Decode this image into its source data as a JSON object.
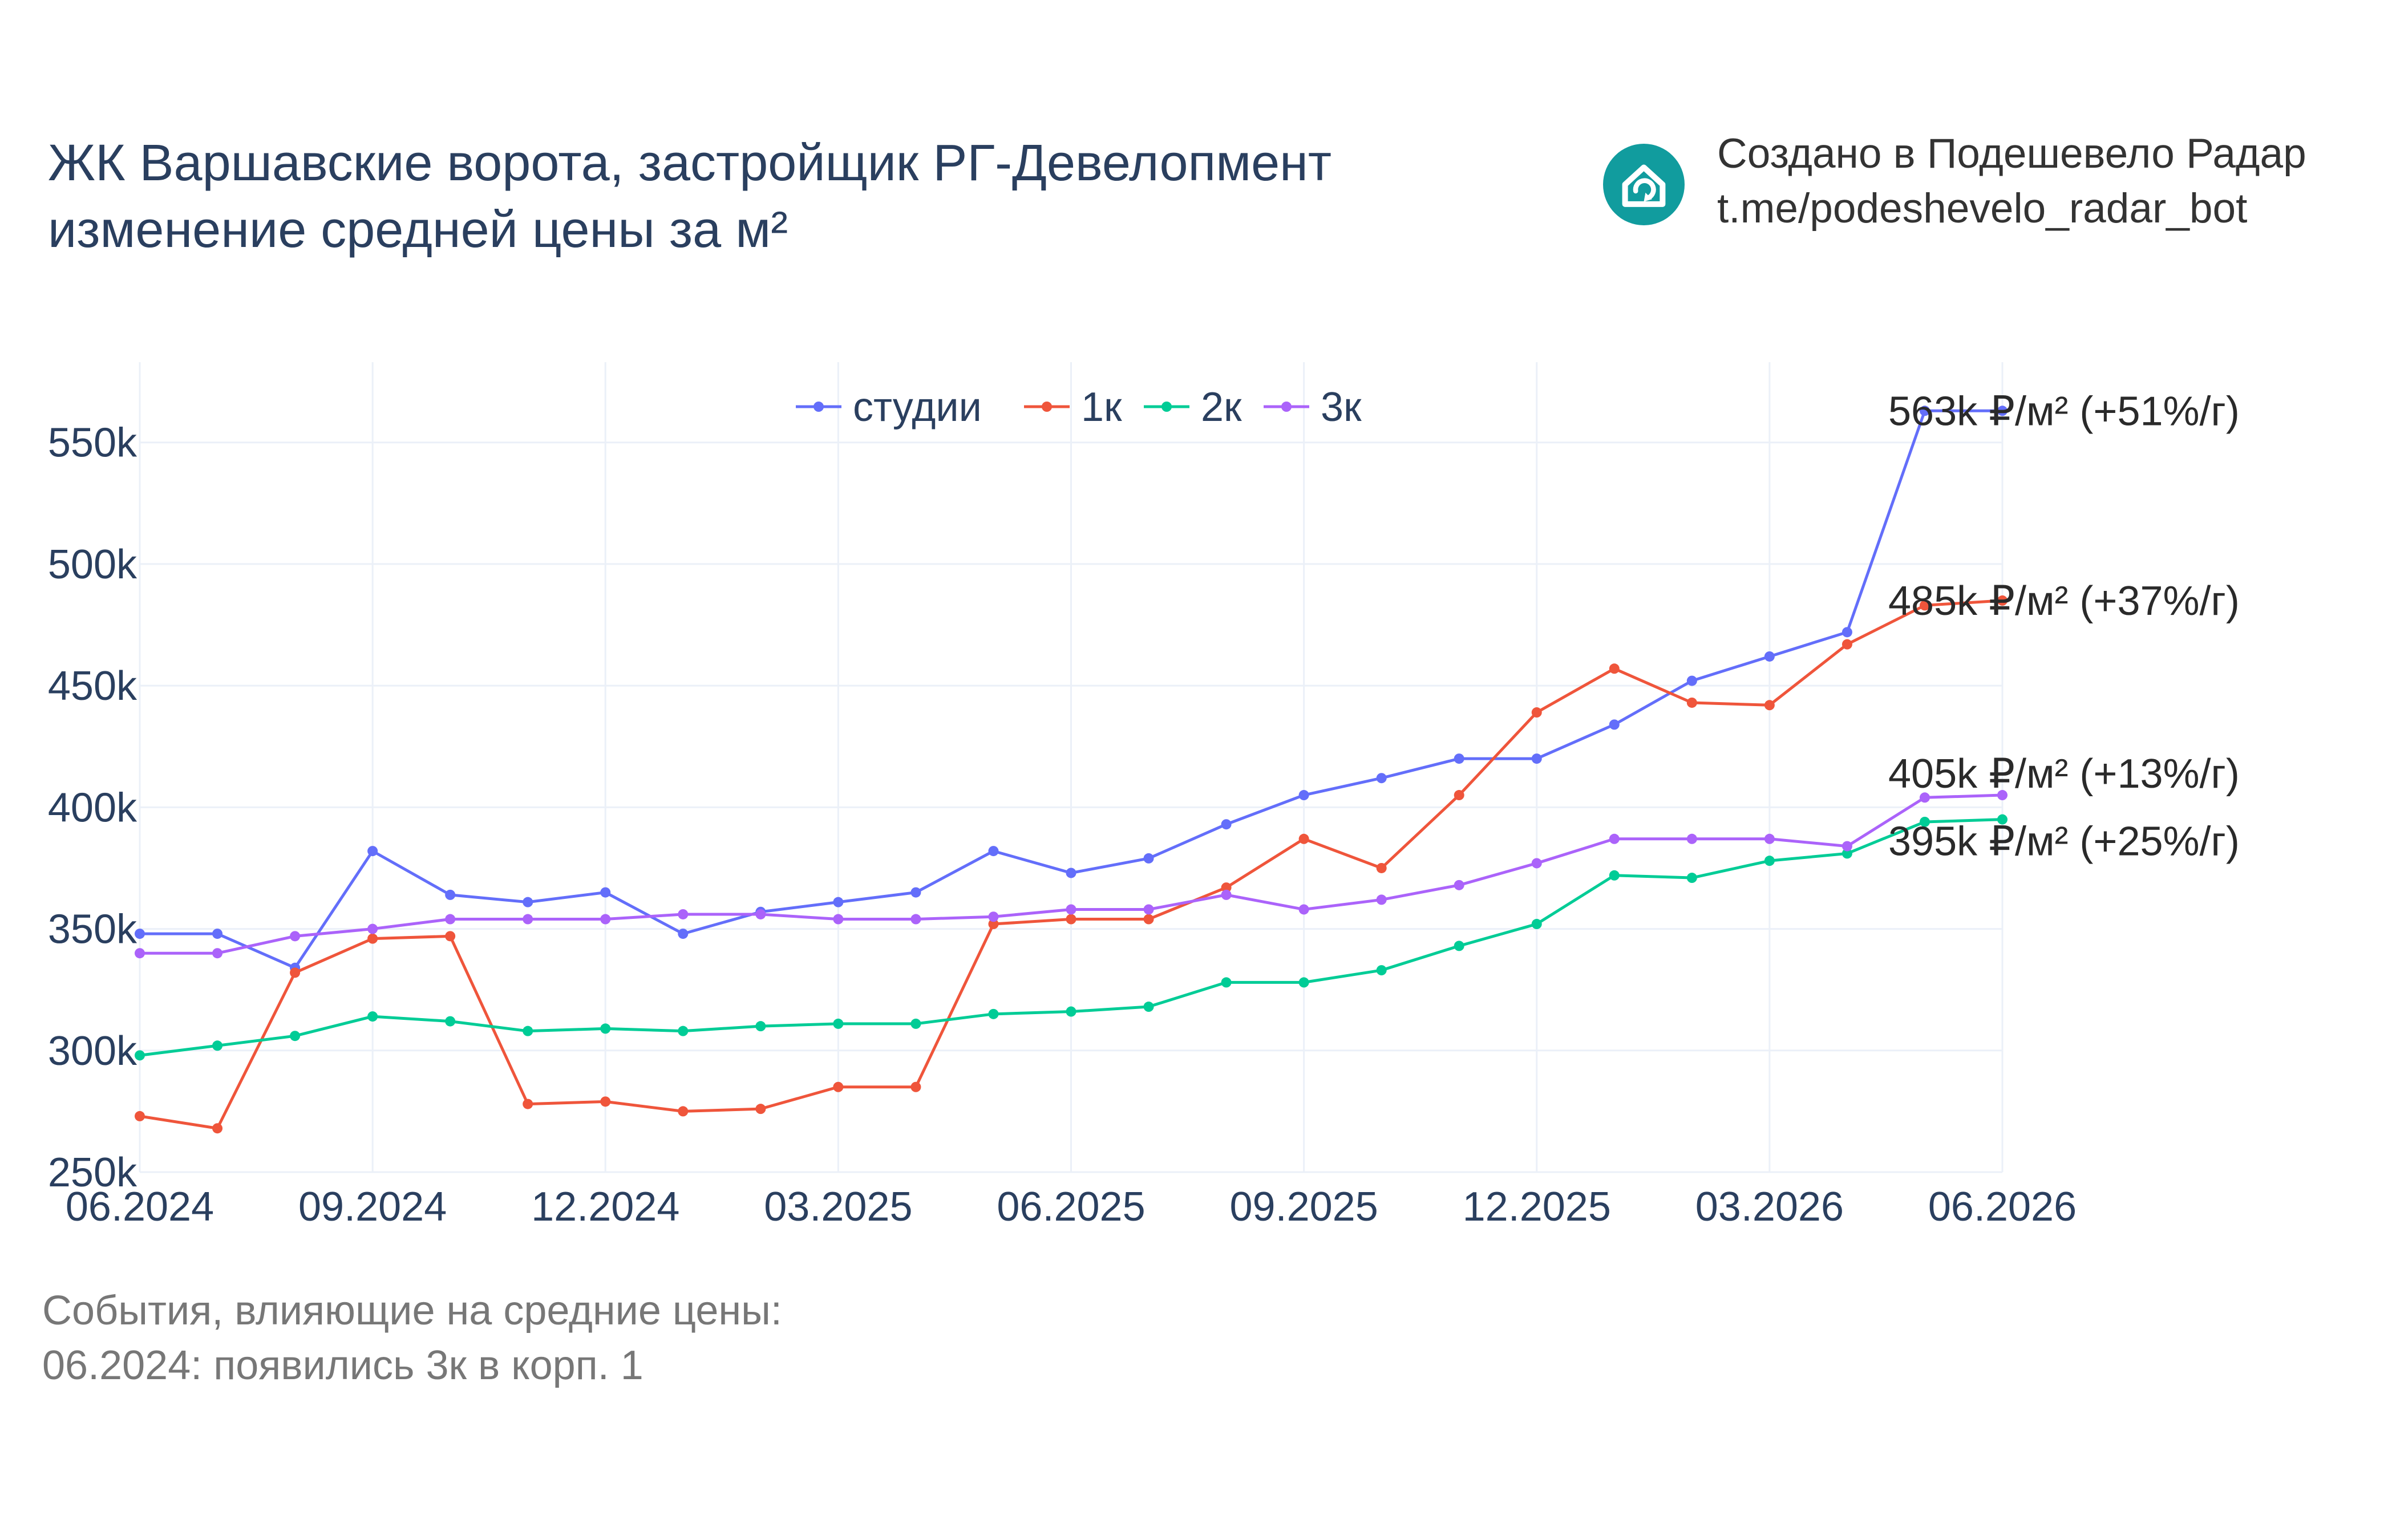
{
  "header": {
    "title_line1": "ЖК Варшавские ворота, застройщик РГ-Девелопмент",
    "title_line2": "изменение средней цены за м²"
  },
  "credit": {
    "icon": "house-refresh-icon",
    "line1": "Создано в Подешевело Радар",
    "line2": "t.me/podeshevelo_radar_bot"
  },
  "events": {
    "heading": "События, влияющие на средние цены:",
    "items": [
      "06.2024: появились 3к в корп. 1"
    ]
  },
  "chart_data": {
    "type": "line",
    "x": [
      "06.2024",
      "07.2024",
      "08.2024",
      "09.2024",
      "10.2024",
      "11.2024",
      "12.2024",
      "01.2025",
      "02.2025",
      "03.2025",
      "04.2025",
      "05.2025",
      "06.2025",
      "07.2025",
      "08.2025",
      "09.2025",
      "10.2025",
      "11.2025",
      "12.2025",
      "01.2026",
      "02.2026",
      "03.2026",
      "04.2026",
      "05.2026",
      "06.2026"
    ],
    "x_ticks": [
      "06.2024",
      "09.2024",
      "12.2024",
      "03.2025",
      "06.2025",
      "09.2025",
      "12.2025",
      "03.2026",
      "06.2026"
    ],
    "y_ticks": [
      250000,
      300000,
      350000,
      400000,
      450000,
      500000,
      550000
    ],
    "y_tick_labels": [
      "250k",
      "300k",
      "350k",
      "400k",
      "450k",
      "500k",
      "550k"
    ],
    "ylim": [
      250000,
      583000
    ],
    "grid": true,
    "legend_position": "top-center",
    "series": [
      {
        "name": "студии",
        "color": "#636efa",
        "values": [
          348000,
          348000,
          334000,
          382000,
          364000,
          361000,
          365000,
          348000,
          357000,
          361000,
          365000,
          382000,
          373000,
          379000,
          393000,
          405000,
          412000,
          420000,
          420000,
          434000,
          452000,
          462000,
          472000,
          563000,
          563000
        ],
        "end_label": "563k ₽/м² (+51%/г)"
      },
      {
        "name": "1к",
        "color": "#ef553b",
        "values": [
          273000,
          268000,
          332000,
          346000,
          347000,
          278000,
          279000,
          275000,
          276000,
          285000,
          285000,
          352000,
          354000,
          354000,
          367000,
          387000,
          375000,
          405000,
          439000,
          457000,
          443000,
          442000,
          467000,
          483000,
          485000
        ],
        "end_label": "485k ₽/м² (+37%/г)"
      },
      {
        "name": "2к",
        "color": "#00cc96",
        "values": [
          298000,
          302000,
          306000,
          314000,
          312000,
          308000,
          309000,
          308000,
          310000,
          311000,
          311000,
          315000,
          316000,
          318000,
          328000,
          328000,
          333000,
          343000,
          352000,
          372000,
          371000,
          378000,
          381000,
          394000,
          395000
        ],
        "end_label": "395k ₽/м² (+25%/г)"
      },
      {
        "name": "3к",
        "color": "#ab63fa",
        "values": [
          340000,
          340000,
          347000,
          350000,
          354000,
          354000,
          354000,
          356000,
          356000,
          354000,
          354000,
          355000,
          358000,
          358000,
          364000,
          358000,
          362000,
          368000,
          377000,
          387000,
          387000,
          387000,
          384000,
          404000,
          405000
        ],
        "end_label": "405k ₽/м² (+13%/г)"
      }
    ]
  }
}
